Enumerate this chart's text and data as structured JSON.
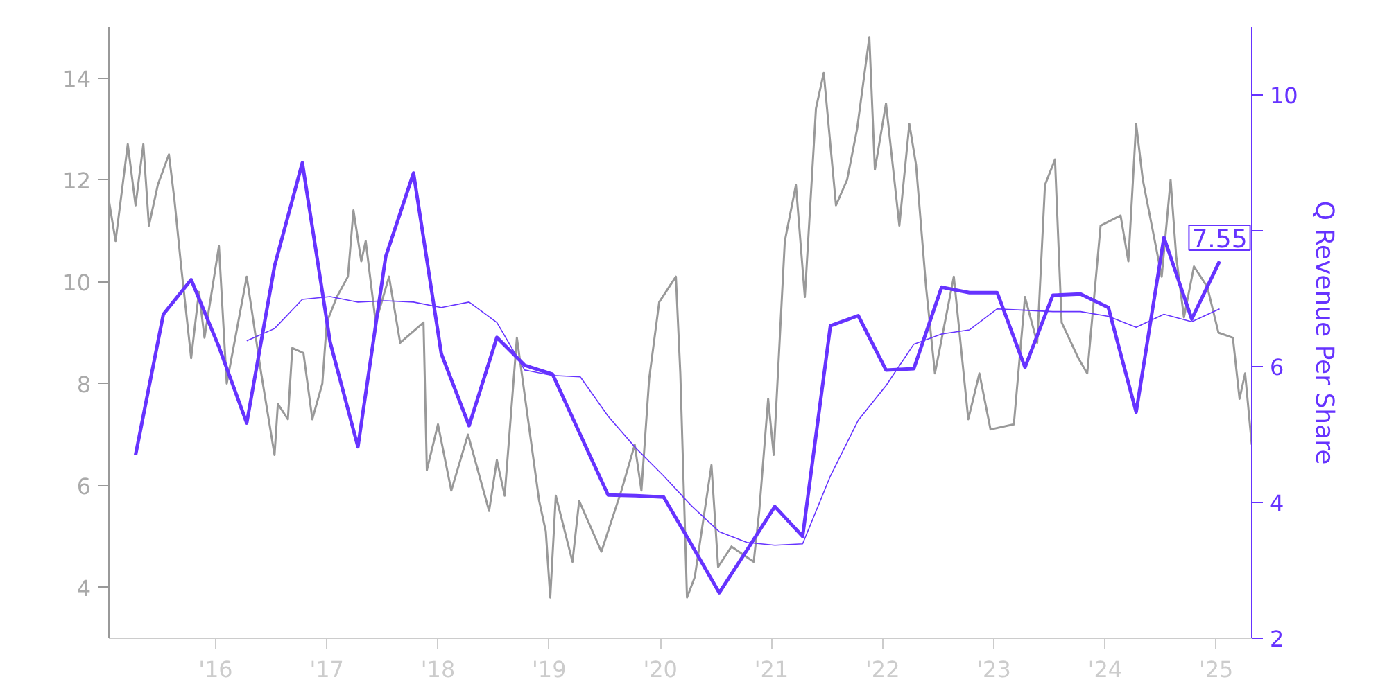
{
  "chart_data": {
    "type": "line",
    "y2label": "Q Revenue Per Share",
    "xlim": [
      2015.04,
      2025.32
    ],
    "xticks": [
      {
        "value": 2016,
        "label": "'16"
      },
      {
        "value": 2017,
        "label": "'17"
      },
      {
        "value": 2018,
        "label": "'18"
      },
      {
        "value": 2019,
        "label": "'19"
      },
      {
        "value": 2020,
        "label": "'20"
      },
      {
        "value": 2021,
        "label": "'21"
      },
      {
        "value": 2022,
        "label": "'22"
      },
      {
        "value": 2023,
        "label": "'23"
      },
      {
        "value": 2024,
        "label": "'24"
      },
      {
        "value": 2025,
        "label": "'25"
      }
    ],
    "ylim": [
      3,
      15
    ],
    "yticks": [
      4,
      6,
      8,
      10,
      12,
      14
    ],
    "y2lim": [
      2,
      11
    ],
    "y2ticks": [
      2,
      4,
      6,
      {
        "value": 8,
        "label": null
      },
      10
    ],
    "grid": false,
    "series": [
      {
        "color": "#999999",
        "x": [
          2015.04,
          2015.1,
          2015.21,
          2015.28,
          2015.35,
          2015.4,
          2015.48,
          2015.58,
          2015.63,
          2015.69,
          2015.78,
          2015.85,
          2015.9,
          2016.03,
          2016.1,
          2016.28,
          2016.41,
          2016.53,
          2016.56,
          2016.65,
          2016.69,
          2016.79,
          2016.87,
          2016.96,
          2017.0,
          2017.09,
          2017.19,
          2017.24,
          2017.31,
          2017.35,
          2017.44,
          2017.56,
          2017.66,
          2017.87,
          2017.9,
          2018.0,
          2018.12,
          2018.27,
          2018.46,
          2018.53,
          2018.6,
          2018.71,
          2018.81,
          2018.91,
          2018.97,
          2019.01,
          2019.06,
          2019.21,
          2019.27,
          2019.47,
          2019.65,
          2019.77,
          2019.83,
          2019.9,
          2019.99,
          2020.14,
          2020.18,
          2020.24,
          2020.31,
          2020.46,
          2020.52,
          2020.64,
          2020.84,
          2020.89,
          2020.97,
          2021.02,
          2021.12,
          2021.22,
          2021.3,
          2021.4,
          2021.47,
          2021.58,
          2021.68,
          2021.77,
          2021.88,
          2021.93,
          2022.03,
          2022.15,
          2022.24,
          2022.3,
          2022.39,
          2022.47,
          2022.64,
          2022.77,
          2022.87,
          2022.97,
          2023.18,
          2023.28,
          2023.39,
          2023.46,
          2023.55,
          2023.61,
          2023.76,
          2023.84,
          2023.96,
          2024.14,
          2024.21,
          2024.28,
          2024.34,
          2024.43,
          2024.51,
          2024.59,
          2024.64,
          2024.71,
          2024.8,
          2024.92,
          2025.02,
          2025.15,
          2025.21,
          2025.26,
          2025.32
        ],
        "values": [
          11.6,
          10.8,
          12.7,
          11.5,
          12.7,
          11.1,
          11.9,
          12.5,
          11.6,
          10.3,
          8.5,
          9.8,
          8.9,
          10.7,
          8.0,
          10.1,
          8.2,
          6.6,
          7.6,
          7.3,
          8.7,
          8.6,
          7.3,
          8.0,
          9.2,
          9.7,
          10.1,
          11.4,
          10.4,
          10.8,
          9.2,
          10.1,
          8.8,
          9.2,
          6.3,
          7.2,
          5.9,
          7.0,
          5.5,
          6.5,
          5.8,
          8.9,
          7.3,
          5.7,
          5.1,
          3.8,
          5.8,
          4.5,
          5.7,
          4.7,
          5.9,
          6.8,
          5.9,
          8.1,
          9.6,
          10.1,
          8.2,
          3.8,
          4.2,
          6.4,
          4.4,
          4.8,
          4.5,
          5.5,
          7.7,
          6.6,
          10.8,
          11.9,
          9.7,
          13.4,
          14.1,
          11.5,
          12.0,
          13.0,
          14.8,
          12.2,
          13.5,
          11.1,
          13.1,
          12.3,
          9.9,
          8.2,
          10.1,
          7.3,
          8.2,
          7.1,
          7.2,
          9.7,
          8.8,
          11.9,
          12.4,
          9.2,
          8.5,
          8.2,
          11.1,
          11.3,
          10.4,
          13.1,
          12.0,
          11.0,
          10.1,
          12.0,
          10.5,
          9.3,
          10.3,
          9.9,
          9.0,
          8.9,
          7.7,
          8.2,
          6.8
        ]
      },
      {
        "color": "#6633ff",
        "axis": "y2",
        "x": [
          2015.28,
          2015.53,
          2015.78,
          2016.03,
          2016.28,
          2016.53,
          2016.78,
          2017.03,
          2017.28,
          2017.53,
          2017.78,
          2018.03,
          2018.28,
          2018.53,
          2018.78,
          2019.03,
          2019.28,
          2019.53,
          2019.78,
          2020.03,
          2020.28,
          2020.53,
          2020.78,
          2021.03,
          2021.28,
          2021.53,
          2021.78,
          2022.03,
          2022.28,
          2022.53,
          2022.78,
          2023.03,
          2023.28,
          2023.53,
          2023.78,
          2024.03,
          2024.28,
          2024.53,
          2024.78,
          2025.03
        ],
        "values": [
          4.7,
          6.77,
          7.28,
          6.29,
          5.17,
          7.48,
          9.0,
          6.36,
          4.82,
          7.62,
          8.85,
          6.19,
          5.13,
          6.43,
          6.02,
          5.89,
          5.0,
          4.11,
          4.1,
          4.08,
          3.38,
          2.67,
          3.3,
          3.94,
          3.5,
          6.6,
          6.75,
          5.95,
          5.97,
          7.17,
          7.09,
          7.09,
          5.99,
          7.05,
          7.07,
          6.87,
          5.33,
          7.9,
          6.7,
          7.55
        ],
        "value_labels": [
          null,
          null,
          null,
          null,
          null,
          null,
          null,
          null,
          null,
          null,
          null,
          null,
          null,
          null,
          null,
          null,
          null,
          null,
          null,
          null,
          null,
          null,
          null,
          null,
          null,
          null,
          null,
          null,
          null,
          null,
          null,
          null,
          null,
          null,
          null,
          null,
          null,
          null,
          null,
          "7.55"
        ]
      },
      {
        "color": "#6633ff",
        "axis": "y2",
        "x": [
          2016.28,
          2016.53,
          2016.78,
          2017.03,
          2017.28,
          2017.53,
          2017.78,
          2018.03,
          2018.28,
          2018.53,
          2018.78,
          2019.03,
          2019.28,
          2019.53,
          2019.78,
          2020.03,
          2020.28,
          2020.53,
          2020.78,
          2021.03,
          2021.28,
          2021.53,
          2021.78,
          2022.03,
          2022.28,
          2022.53,
          2022.78,
          2023.03,
          2023.28,
          2023.53,
          2023.78,
          2024.03,
          2024.28,
          2024.53,
          2024.78,
          2025.03
        ],
        "values": [
          6.38,
          6.56,
          6.99,
          7.03,
          6.95,
          6.97,
          6.95,
          6.87,
          6.95,
          6.65,
          5.95,
          5.87,
          5.85,
          5.27,
          4.8,
          4.39,
          3.95,
          3.57,
          3.41,
          3.37,
          3.39,
          4.39,
          5.21,
          5.72,
          6.33,
          6.48,
          6.54,
          6.85,
          6.83,
          6.81,
          6.81,
          6.74,
          6.58,
          6.77,
          6.66,
          6.85
        ]
      }
    ]
  }
}
